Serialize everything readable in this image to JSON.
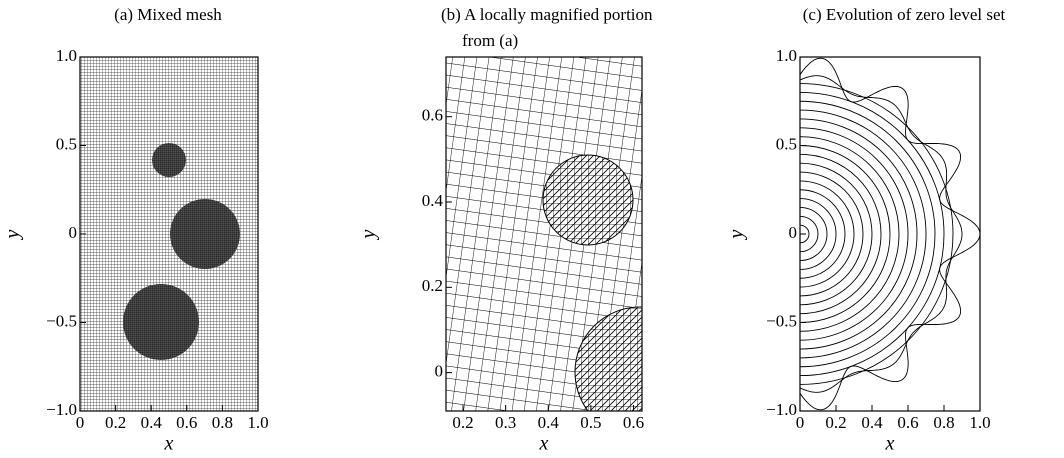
{
  "chart_data": [
    {
      "type": "mesh",
      "title": [
        "(a) Mixed mesh"
      ],
      "xlabel": "x",
      "ylabel": "y",
      "xlim": [
        0,
        1
      ],
      "ylim": [
        -1,
        1
      ],
      "xticks": [
        0,
        0.2,
        0.4,
        0.6,
        0.8,
        {
          "value": 1,
          "label": "1.0"
        }
      ],
      "yticks": [
        {
          "value": -1,
          "label": "−1.0"
        },
        {
          "value": -0.5,
          "label": "−0.5"
        },
        0,
        0.5,
        {
          "value": 1,
          "label": "1.0"
        }
      ]
    },
    {
      "type": "mesh-zoom",
      "title": [
        "(b) A locally magnified portion",
        "from (a)"
      ],
      "xlabel": "x",
      "ylabel": "y",
      "xlim": [
        0.16,
        0.62
      ],
      "ylim": [
        -0.09,
        0.74
      ],
      "xticks": [
        0.2,
        0.3,
        0.4,
        0.5,
        0.6
      ],
      "yticks": [
        0,
        0.2,
        0.4,
        0.6
      ]
    },
    {
      "type": "contour",
      "title": [
        "(c) Evolution of zero level set"
      ],
      "xlabel": "x",
      "ylabel": "y",
      "xlim": [
        0,
        1
      ],
      "ylim": [
        -1,
        1
      ],
      "xticks": [
        0,
        0.2,
        0.4,
        0.6,
        0.8,
        {
          "value": 1,
          "label": "1.0"
        }
      ],
      "yticks": [
        {
          "value": -1,
          "label": "−1.0"
        },
        {
          "value": -0.5,
          "label": "−0.5"
        },
        0,
        0.5,
        {
          "value": 1,
          "label": "1.0"
        }
      ]
    }
  ]
}
